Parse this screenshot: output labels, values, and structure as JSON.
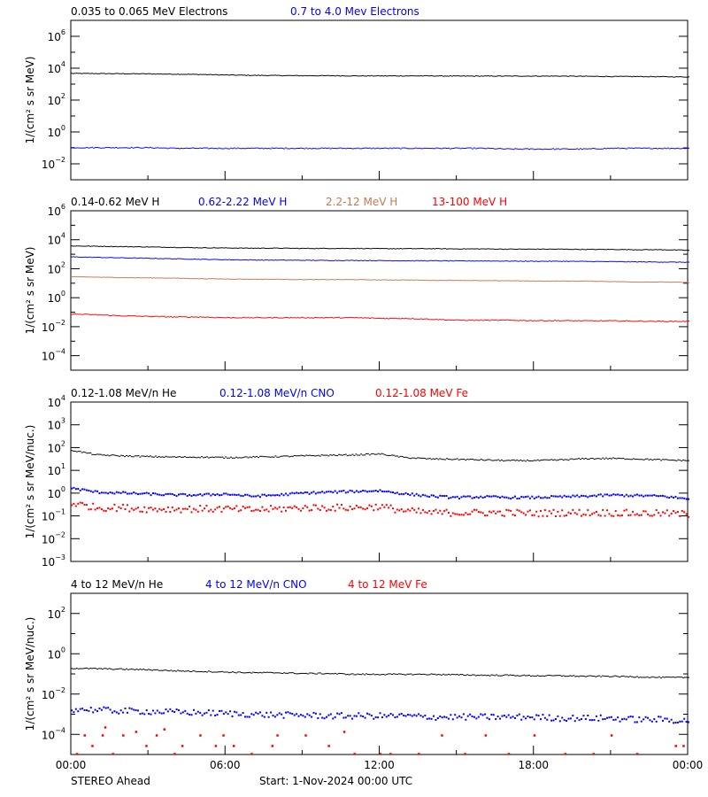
{
  "chart_data": [
    {
      "type": "scatter",
      "yscale": "log",
      "ylim": [
        0.001,
        10000000.0
      ],
      "ylabel": "1/(cm² s sr MeV)",
      "ytick_exponents": [
        -2,
        0,
        2,
        4,
        6
      ],
      "series": [
        {
          "name": "0.035 to 0.065 MeV Electrons",
          "color": "#000000",
          "hourly": [
            5000,
            4900,
            4800,
            4700,
            4500,
            4300,
            4000,
            3800,
            3700,
            3600,
            3600,
            3500,
            3500,
            3500,
            3500,
            3400,
            3400,
            3400,
            3400,
            3400,
            3300,
            3200,
            3200,
            3100,
            3000
          ]
        },
        {
          "name": "0.7 to 4.0 Mev Electrons",
          "color": "#0000ff",
          "hourly": [
            0.11,
            0.11,
            0.11,
            0.11,
            0.1,
            0.1,
            0.1,
            0.1,
            0.1,
            0.1,
            0.1,
            0.1,
            0.1,
            0.1,
            0.1,
            0.1,
            0.1,
            0.09,
            0.09,
            0.09,
            0.09,
            0.1,
            0.1,
            0.1,
            0.1
          ]
        }
      ]
    },
    {
      "type": "scatter",
      "yscale": "log",
      "ylim": [
        1e-05,
        1000000.0
      ],
      "ylabel": "1/(cm² s sr MeV)",
      "ytick_exponents": [
        -4,
        -2,
        0,
        2,
        4,
        6
      ],
      "series": [
        {
          "name": "0.14-0.62 MeV H",
          "color": "#000000",
          "hourly": [
            4000,
            3800,
            3600,
            3400,
            3200,
            3000,
            2900,
            2800,
            2800,
            2700,
            2700,
            2700,
            2600,
            2600,
            2600,
            2500,
            2500,
            2400,
            2400,
            2400,
            2300,
            2300,
            2200,
            2200,
            2000
          ]
        },
        {
          "name": "0.62-2.22 MeV H",
          "color": "#0000ff",
          "hourly": [
            700,
            650,
            600,
            560,
            520,
            480,
            450,
            430,
            420,
            410,
            400,
            400,
            390,
            380,
            380,
            370,
            370,
            360,
            350,
            350,
            340,
            330,
            320,
            310,
            300
          ]
        },
        {
          "name": "2.2-12 MeV H",
          "color": "#c87850",
          "hourly": [
            30,
            28,
            26,
            25,
            24,
            22,
            21,
            20,
            20,
            19,
            19,
            19,
            18,
            18,
            17,
            17,
            16,
            16,
            15,
            15,
            15,
            14,
            13,
            13,
            12
          ]
        },
        {
          "name": "13-100 MeV H",
          "color": "#ff0000",
          "hourly": [
            0.08,
            0.07,
            0.06,
            0.055,
            0.05,
            0.05,
            0.045,
            0.045,
            0.045,
            0.045,
            0.045,
            0.045,
            0.04,
            0.04,
            0.035,
            0.03,
            0.03,
            0.03,
            0.028,
            0.028,
            0.027,
            0.027,
            0.026,
            0.025,
            0.025
          ]
        }
      ]
    },
    {
      "type": "scatter",
      "yscale": "log",
      "ylim": [
        0.001,
        10000.0
      ],
      "ylabel": "1/(cm² s sr MeV/nuc.)",
      "ytick_exponents": [
        -3,
        -2,
        -1,
        0,
        1,
        2,
        3,
        4
      ],
      "series": [
        {
          "name": "0.12-1.08 MeV/n He",
          "color": "#000000",
          "hourly": [
            80,
            50,
            45,
            42,
            40,
            40,
            38,
            40,
            42,
            45,
            48,
            50,
            55,
            38,
            33,
            32,
            30,
            28,
            28,
            30,
            34,
            35,
            33,
            30,
            28
          ]
        },
        {
          "name": "0.12-1.08 MeV/n CNO",
          "color": "#0000ff",
          "hourly": [
            1.8,
            1.2,
            1.1,
            1.0,
            0.9,
            0.9,
            1.0,
            0.8,
            0.9,
            1.1,
            1.2,
            1.3,
            1.4,
            1.0,
            0.8,
            0.7,
            0.75,
            0.7,
            0.7,
            0.75,
            0.8,
            0.9,
            0.85,
            0.8,
            0.6
          ]
        },
        {
          "name": "0.12-1.08 MeV Fe",
          "color": "#ff0000",
          "hourly": [
            0.4,
            0.25,
            0.25,
            0.22,
            0.22,
            0.22,
            0.22,
            0.2,
            0.22,
            0.25,
            0.25,
            0.25,
            0.28,
            0.18,
            0.15,
            0.15,
            0.15,
            0.15,
            0.14,
            0.15,
            0.15,
            0.15,
            0.14,
            0.14,
            0.13
          ]
        }
      ]
    },
    {
      "type": "scatter",
      "yscale": "log",
      "ylim": [
        1e-05,
        1000.0
      ],
      "ylabel": "1/(cm² s sr MeV/nuc.)",
      "ytick_exponents": [
        -4,
        -2,
        0,
        2
      ],
      "series": [
        {
          "name": "4 to 12 MeV/n He",
          "color": "#000000",
          "hourly": [
            0.2,
            0.19,
            0.18,
            0.17,
            0.15,
            0.14,
            0.13,
            0.12,
            0.12,
            0.11,
            0.11,
            0.1,
            0.1,
            0.1,
            0.1,
            0.095,
            0.09,
            0.09,
            0.085,
            0.085,
            0.08,
            0.08,
            0.075,
            0.07,
            0.07
          ]
        },
        {
          "name": "4 to 12 MeV/n CNO",
          "color": "#0000ff",
          "hourly": [
            0.002,
            0.0018,
            0.0016,
            0.0015,
            0.0014,
            0.0013,
            0.0012,
            0.0011,
            0.001,
            0.001,
            0.0009,
            0.0009,
            0.0009,
            0.0009,
            0.0008,
            0.0008,
            0.0008,
            0.0008,
            0.0008,
            0.0007,
            0.0007,
            0.0007,
            0.0006,
            0.0006,
            0.0005
          ]
        },
        {
          "name": "4 to 12 MeV Fe",
          "color": "#ff0000",
          "points": [
            [
              0.2,
              1.2e-05
            ],
            [
              0.5,
              0.0001
            ],
            [
              0.8,
              3e-05
            ],
            [
              1.2,
              0.0001
            ],
            [
              1.3,
              0.00025
            ],
            [
              1.6,
              1.2e-05
            ],
            [
              2.0,
              0.0001
            ],
            [
              2.5,
              0.00015
            ],
            [
              2.9,
              3e-05
            ],
            [
              3.3,
              0.0001
            ],
            [
              3.6,
              0.0002
            ],
            [
              4.0,
              1.2e-05
            ],
            [
              4.3,
              3e-05
            ],
            [
              5.0,
              0.0001
            ],
            [
              5.6,
              3e-05
            ],
            [
              5.9,
              0.0001
            ],
            [
              6.3,
              3e-05
            ],
            [
              7.0,
              1.2e-05
            ],
            [
              7.8,
              3e-05
            ],
            [
              8.0,
              0.0001
            ],
            [
              9.1,
              0.0001
            ],
            [
              10.0,
              3e-05
            ],
            [
              10.6,
              0.00015
            ],
            [
              11.0,
              1.2e-05
            ],
            [
              12.0,
              1.2e-05
            ],
            [
              12.4,
              1.2e-05
            ],
            [
              13.5,
              1.2e-05
            ],
            [
              14.4,
              0.0001
            ],
            [
              15.3,
              1.2e-05
            ],
            [
              16.1,
              0.0001
            ],
            [
              17.0,
              1.2e-05
            ],
            [
              18.0,
              0.0001
            ],
            [
              19.2,
              1.2e-05
            ],
            [
              20.3,
              1.2e-05
            ],
            [
              21.0,
              0.0001
            ],
            [
              22.0,
              1.2e-05
            ],
            [
              23.5,
              3e-05
            ],
            [
              23.8,
              3e-05
            ]
          ]
        }
      ]
    }
  ],
  "xaxis": {
    "ticks": [
      "00:00",
      "06:00",
      "12:00",
      "18:00",
      "00:00"
    ],
    "range_hours": [
      0,
      24
    ]
  },
  "footer": {
    "spacecraft": "STEREO Ahead",
    "start": "Start:  1-Nov-2024 00:00 UTC"
  }
}
